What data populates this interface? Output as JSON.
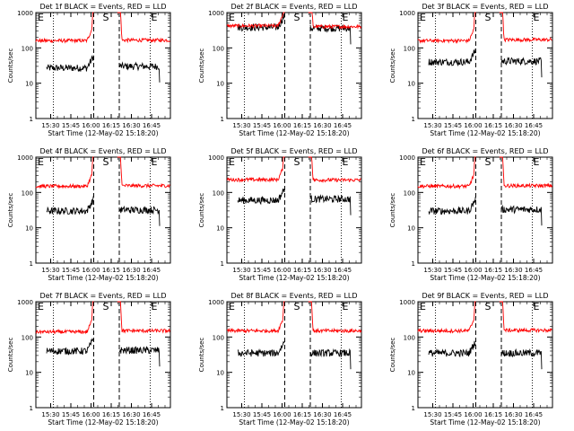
{
  "chart_data": [
    {
      "type": "line",
      "title": "Det 1f BLACK = Events, RED = LLD",
      "xlabel": "Start Time (12-May-02 15:18:20)",
      "ylabel": "Counts/sec",
      "yscale": "log",
      "ylim": [
        1,
        1000
      ],
      "yticks": [
        "1",
        "10",
        "100",
        "1000"
      ],
      "xticks": [
        "15:30",
        "15:45",
        "16:00",
        "16:15",
        "16:30",
        "16:45"
      ],
      "markers": {
        "left": "E",
        "middle": "S",
        "right": "E"
      },
      "series": [
        {
          "name": "Events",
          "color": "#000000",
          "pre_level": 27,
          "post_level": 30
        },
        {
          "name": "LLD",
          "color": "#ff0000",
          "pre_level": 160,
          "post_level": 165
        }
      ]
    },
    {
      "type": "line",
      "title": "Det 2f BLACK = Events, RED = LLD",
      "xlabel": "Start Time (12-May-02 15:18:20)",
      "ylabel": "Counts/sec",
      "yscale": "log",
      "ylim": [
        1,
        1000
      ],
      "yticks": [
        "1",
        "10",
        "100",
        "1000"
      ],
      "xticks": [
        "15:30",
        "15:45",
        "16:00",
        "16:15",
        "16:30",
        "16:45"
      ],
      "markers": {
        "left": "E",
        "middle": "S",
        "right": "E"
      },
      "series": [
        {
          "name": "Events",
          "color": "#000000",
          "pre_level": 380,
          "post_level": 360
        },
        {
          "name": "LLD",
          "color": "#ff0000",
          "pre_level": 420,
          "post_level": 400
        }
      ]
    },
    {
      "type": "line",
      "title": "Det 3f BLACK = Events, RED = LLD",
      "xlabel": "Start Time (12-May-02 15:18:20)",
      "ylabel": "Counts/sec",
      "yscale": "log",
      "ylim": [
        1,
        1000
      ],
      "yticks": [
        "1",
        "10",
        "100",
        "1000"
      ],
      "xticks": [
        "15:30",
        "15:45",
        "16:00",
        "16:15",
        "16:30",
        "16:45"
      ],
      "markers": {
        "left": "E",
        "middle": "S",
        "right": "E"
      },
      "series": [
        {
          "name": "Events",
          "color": "#000000",
          "pre_level": 40,
          "post_level": 42
        },
        {
          "name": "LLD",
          "color": "#ff0000",
          "pre_level": 160,
          "post_level": 170
        }
      ]
    },
    {
      "type": "line",
      "title": "Det 4f BLACK = Events, RED = LLD",
      "xlabel": "Start Time (12-May-02 15:18:20)",
      "ylabel": "Counts/sec",
      "yscale": "log",
      "ylim": [
        1,
        1000
      ],
      "yticks": [
        "1",
        "10",
        "100",
        "1000"
      ],
      "xticks": [
        "15:30",
        "15:45",
        "16:00",
        "16:15",
        "16:30",
        "16:45"
      ],
      "markers": {
        "left": "E",
        "middle": "S",
        "right": "E"
      },
      "series": [
        {
          "name": "Events",
          "color": "#000000",
          "pre_level": 30,
          "post_level": 32
        },
        {
          "name": "LLD",
          "color": "#ff0000",
          "pre_level": 150,
          "post_level": 155
        }
      ]
    },
    {
      "type": "line",
      "title": "Det 5f BLACK = Events, RED = LLD",
      "xlabel": "Start Time (12-May-02 15:18:20)",
      "ylabel": "Counts/sec",
      "yscale": "log",
      "ylim": [
        1,
        1000
      ],
      "yticks": [
        "1",
        "10",
        "100",
        "1000"
      ],
      "xticks": [
        "15:30",
        "15:45",
        "16:00",
        "16:15",
        "16:30",
        "16:45"
      ],
      "markers": {
        "left": "E",
        "middle": "S",
        "right": "E"
      },
      "series": [
        {
          "name": "Events",
          "color": "#000000",
          "pre_level": 60,
          "post_level": 65
        },
        {
          "name": "LLD",
          "color": "#ff0000",
          "pre_level": 230,
          "post_level": 225
        }
      ]
    },
    {
      "type": "line",
      "title": "Det 6f BLACK = Events, RED = LLD",
      "xlabel": "Start Time (12-May-02 15:18:20)",
      "ylabel": "Counts/sec",
      "yscale": "log",
      "ylim": [
        1,
        1000
      ],
      "yticks": [
        "1",
        "10",
        "100",
        "1000"
      ],
      "xticks": [
        "15:30",
        "15:45",
        "16:00",
        "16:15",
        "16:30",
        "16:45"
      ],
      "markers": {
        "left": "E",
        "middle": "S",
        "right": "E"
      },
      "series": [
        {
          "name": "Events",
          "color": "#000000",
          "pre_level": 30,
          "post_level": 33
        },
        {
          "name": "LLD",
          "color": "#ff0000",
          "pre_level": 150,
          "post_level": 155
        }
      ]
    },
    {
      "type": "line",
      "title": "Det 7f BLACK = Events, RED = LLD",
      "xlabel": "Start Time (12-May-02 15:18:20)",
      "ylabel": "Counts/sec",
      "yscale": "log",
      "ylim": [
        1,
        1000
      ],
      "yticks": [
        "1",
        "10",
        "100",
        "1000"
      ],
      "xticks": [
        "15:30",
        "15:45",
        "16:00",
        "16:15",
        "16:30",
        "16:45"
      ],
      "markers": {
        "left": "E",
        "middle": "S",
        "right": "E"
      },
      "series": [
        {
          "name": "Events",
          "color": "#000000",
          "pre_level": 40,
          "post_level": 42
        },
        {
          "name": "LLD",
          "color": "#ff0000",
          "pre_level": 140,
          "post_level": 150
        }
      ]
    },
    {
      "type": "line",
      "title": "Det 8f BLACK = Events, RED = LLD",
      "xlabel": "Start Time (12-May-02 15:18:20)",
      "ylabel": "Counts/sec",
      "yscale": "log",
      "ylim": [
        1,
        1000
      ],
      "yticks": [
        "1",
        "10",
        "100",
        "1000"
      ],
      "xticks": [
        "15:30",
        "15:45",
        "16:00",
        "16:15",
        "16:30",
        "16:45"
      ],
      "markers": {
        "left": "E",
        "middle": "S",
        "right": "E"
      },
      "series": [
        {
          "name": "Events",
          "color": "#000000",
          "pre_level": 35,
          "post_level": 35
        },
        {
          "name": "LLD",
          "color": "#ff0000",
          "pre_level": 150,
          "post_level": 150
        }
      ]
    },
    {
      "type": "line",
      "title": "Det 9f BLACK = Events, RED = LLD",
      "xlabel": "Start Time (12-May-02 15:18:20)",
      "ylabel": "Counts/sec",
      "yscale": "log",
      "ylim": [
        1,
        1000
      ],
      "yticks": [
        "1",
        "10",
        "100",
        "1000"
      ],
      "xticks": [
        "15:30",
        "15:45",
        "16:00",
        "16:15",
        "16:30",
        "16:45"
      ],
      "markers": {
        "left": "E",
        "middle": "S",
        "right": "E"
      },
      "series": [
        {
          "name": "Events",
          "color": "#000000",
          "pre_level": 35,
          "post_level": 35
        },
        {
          "name": "LLD",
          "color": "#ff0000",
          "pre_level": 150,
          "post_level": 155
        }
      ]
    }
  ]
}
